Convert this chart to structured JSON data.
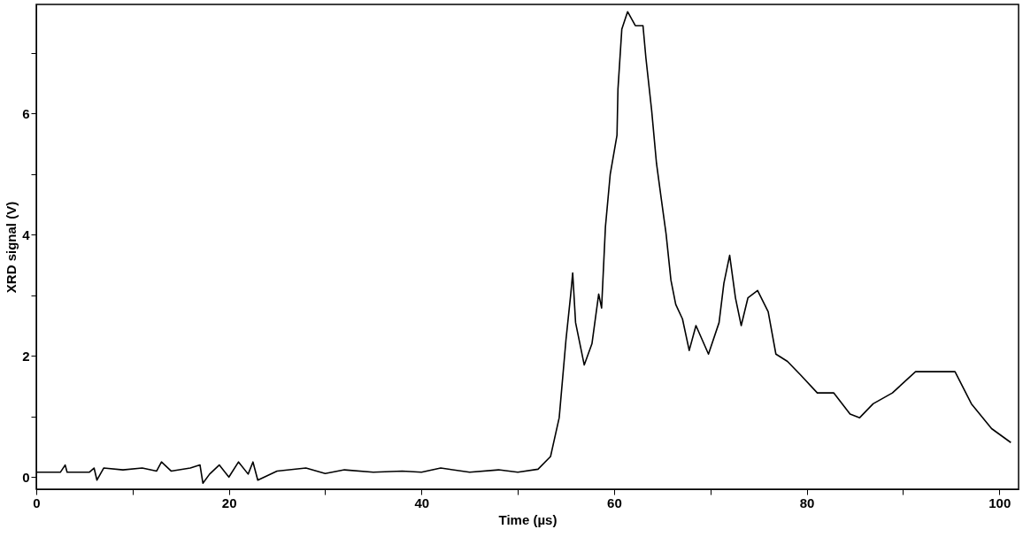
{
  "chart_data": {
    "type": "line",
    "xlabel": "Time (µs)",
    "ylabel": "XRD signal (V)",
    "x": [
      0,
      2.5,
      3,
      3.2,
      5.5,
      6,
      6.3,
      7,
      9,
      11,
      12.5,
      13,
      14,
      16,
      17,
      17.3,
      18,
      19,
      20,
      21,
      22,
      22.5,
      23,
      25,
      28,
      30,
      32,
      35,
      38,
      40,
      42,
      45,
      48,
      50,
      52.1,
      53.4,
      54.3,
      55.0,
      55.5,
      55.7,
      56.0,
      56.9,
      57.7,
      58.4,
      58.7,
      59.1,
      59.6,
      60.3,
      60.4,
      60.8,
      61.4,
      62.2,
      63.0,
      63.3,
      63.9,
      64.4,
      64.9,
      65.4,
      65.9,
      66.4,
      67.1,
      67.8,
      68.5,
      69.8,
      70.9,
      71.4,
      72.0,
      72.6,
      73.2,
      73.9,
      74.9,
      76.0,
      76.8,
      78.0,
      79.4,
      81.1,
      82.8,
      84.5,
      85.5,
      86.9,
      88.9,
      91.3,
      93.0,
      95.4,
      97.1,
      99.2,
      101.2
    ],
    "values": [
      0.08,
      0.08,
      0.2,
      0.08,
      0.08,
      0.15,
      -0.05,
      0.15,
      0.12,
      0.15,
      0.1,
      0.25,
      0.1,
      0.15,
      0.2,
      -0.1,
      0.05,
      0.2,
      0.0,
      0.25,
      0.05,
      0.25,
      -0.05,
      0.1,
      0.15,
      0.06,
      0.12,
      0.08,
      0.1,
      0.08,
      0.15,
      0.08,
      0.12,
      0.08,
      0.13,
      0.34,
      0.98,
      2.26,
      3.02,
      3.37,
      2.55,
      1.85,
      2.2,
      3.02,
      2.79,
      4.13,
      5.0,
      5.64,
      6.4,
      7.39,
      7.68,
      7.45,
      7.45,
      6.92,
      6.05,
      5.18,
      4.59,
      4.01,
      3.25,
      2.85,
      2.61,
      2.09,
      2.5,
      2.03,
      2.55,
      3.2,
      3.66,
      2.96,
      2.5,
      2.96,
      3.08,
      2.73,
      2.03,
      1.91,
      1.68,
      1.39,
      1.39,
      1.04,
      0.98,
      1.21,
      1.39,
      1.74,
      1.74,
      1.74,
      1.21,
      0.8,
      0.57
    ],
    "color": "#000000",
    "xlim": [
      0,
      102
    ],
    "xticks": [
      0,
      {
        "value": 10,
        "label": null
      },
      20,
      {
        "value": 30,
        "label": null
      },
      40,
      {
        "value": 50,
        "label": null
      },
      60,
      {
        "value": 70,
        "label": null
      },
      80,
      {
        "value": 90,
        "label": null
      },
      100
    ],
    "ylim": [
      -0.2,
      7.8
    ],
    "yticks": [
      0,
      {
        "value": 1,
        "label": null
      },
      2,
      {
        "value": 3,
        "label": null
      },
      4,
      {
        "value": 5,
        "label": null
      },
      6,
      {
        "value": 7,
        "label": null
      }
    ],
    "grid": false,
    "marker": "none",
    "line_style": "solid"
  }
}
